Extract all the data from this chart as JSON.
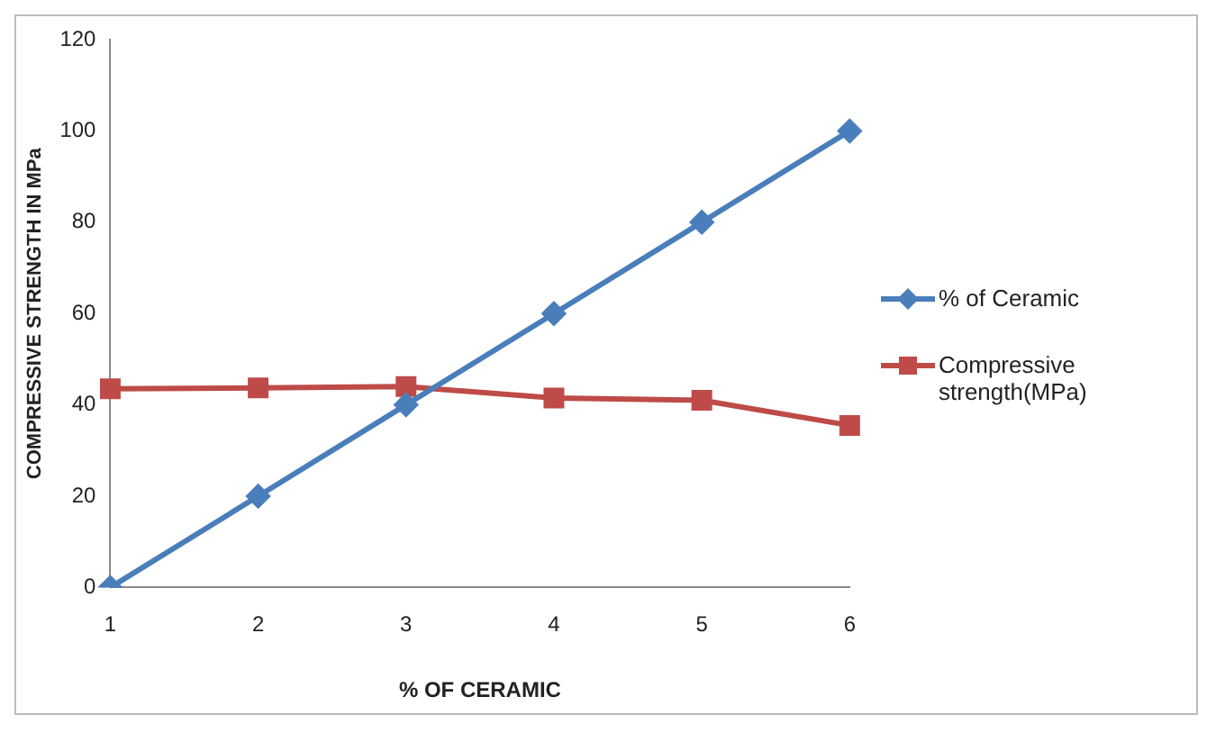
{
  "chart_data": {
    "type": "line",
    "xlabel": "% OF CERAMIC",
    "ylabel": "COMPRESSIVE STRENGTH IN MPa",
    "categories": [
      "1",
      "2",
      "3",
      "4",
      "5",
      "6"
    ],
    "ylim": [
      0,
      120
    ],
    "yticks": [
      0,
      20,
      40,
      60,
      80,
      100,
      120
    ],
    "grid": false,
    "legend": "right",
    "series": [
      {
        "name": "% of Ceramic",
        "color": "#4a7ebb",
        "marker": "diamond",
        "values": [
          0,
          20,
          40,
          60,
          80,
          100
        ]
      },
      {
        "name": "Compressive strength(MPa)",
        "color": "#be4b48",
        "marker": "square",
        "values": [
          43.5,
          43.7,
          44,
          41.5,
          41,
          35.5
        ]
      }
    ]
  }
}
